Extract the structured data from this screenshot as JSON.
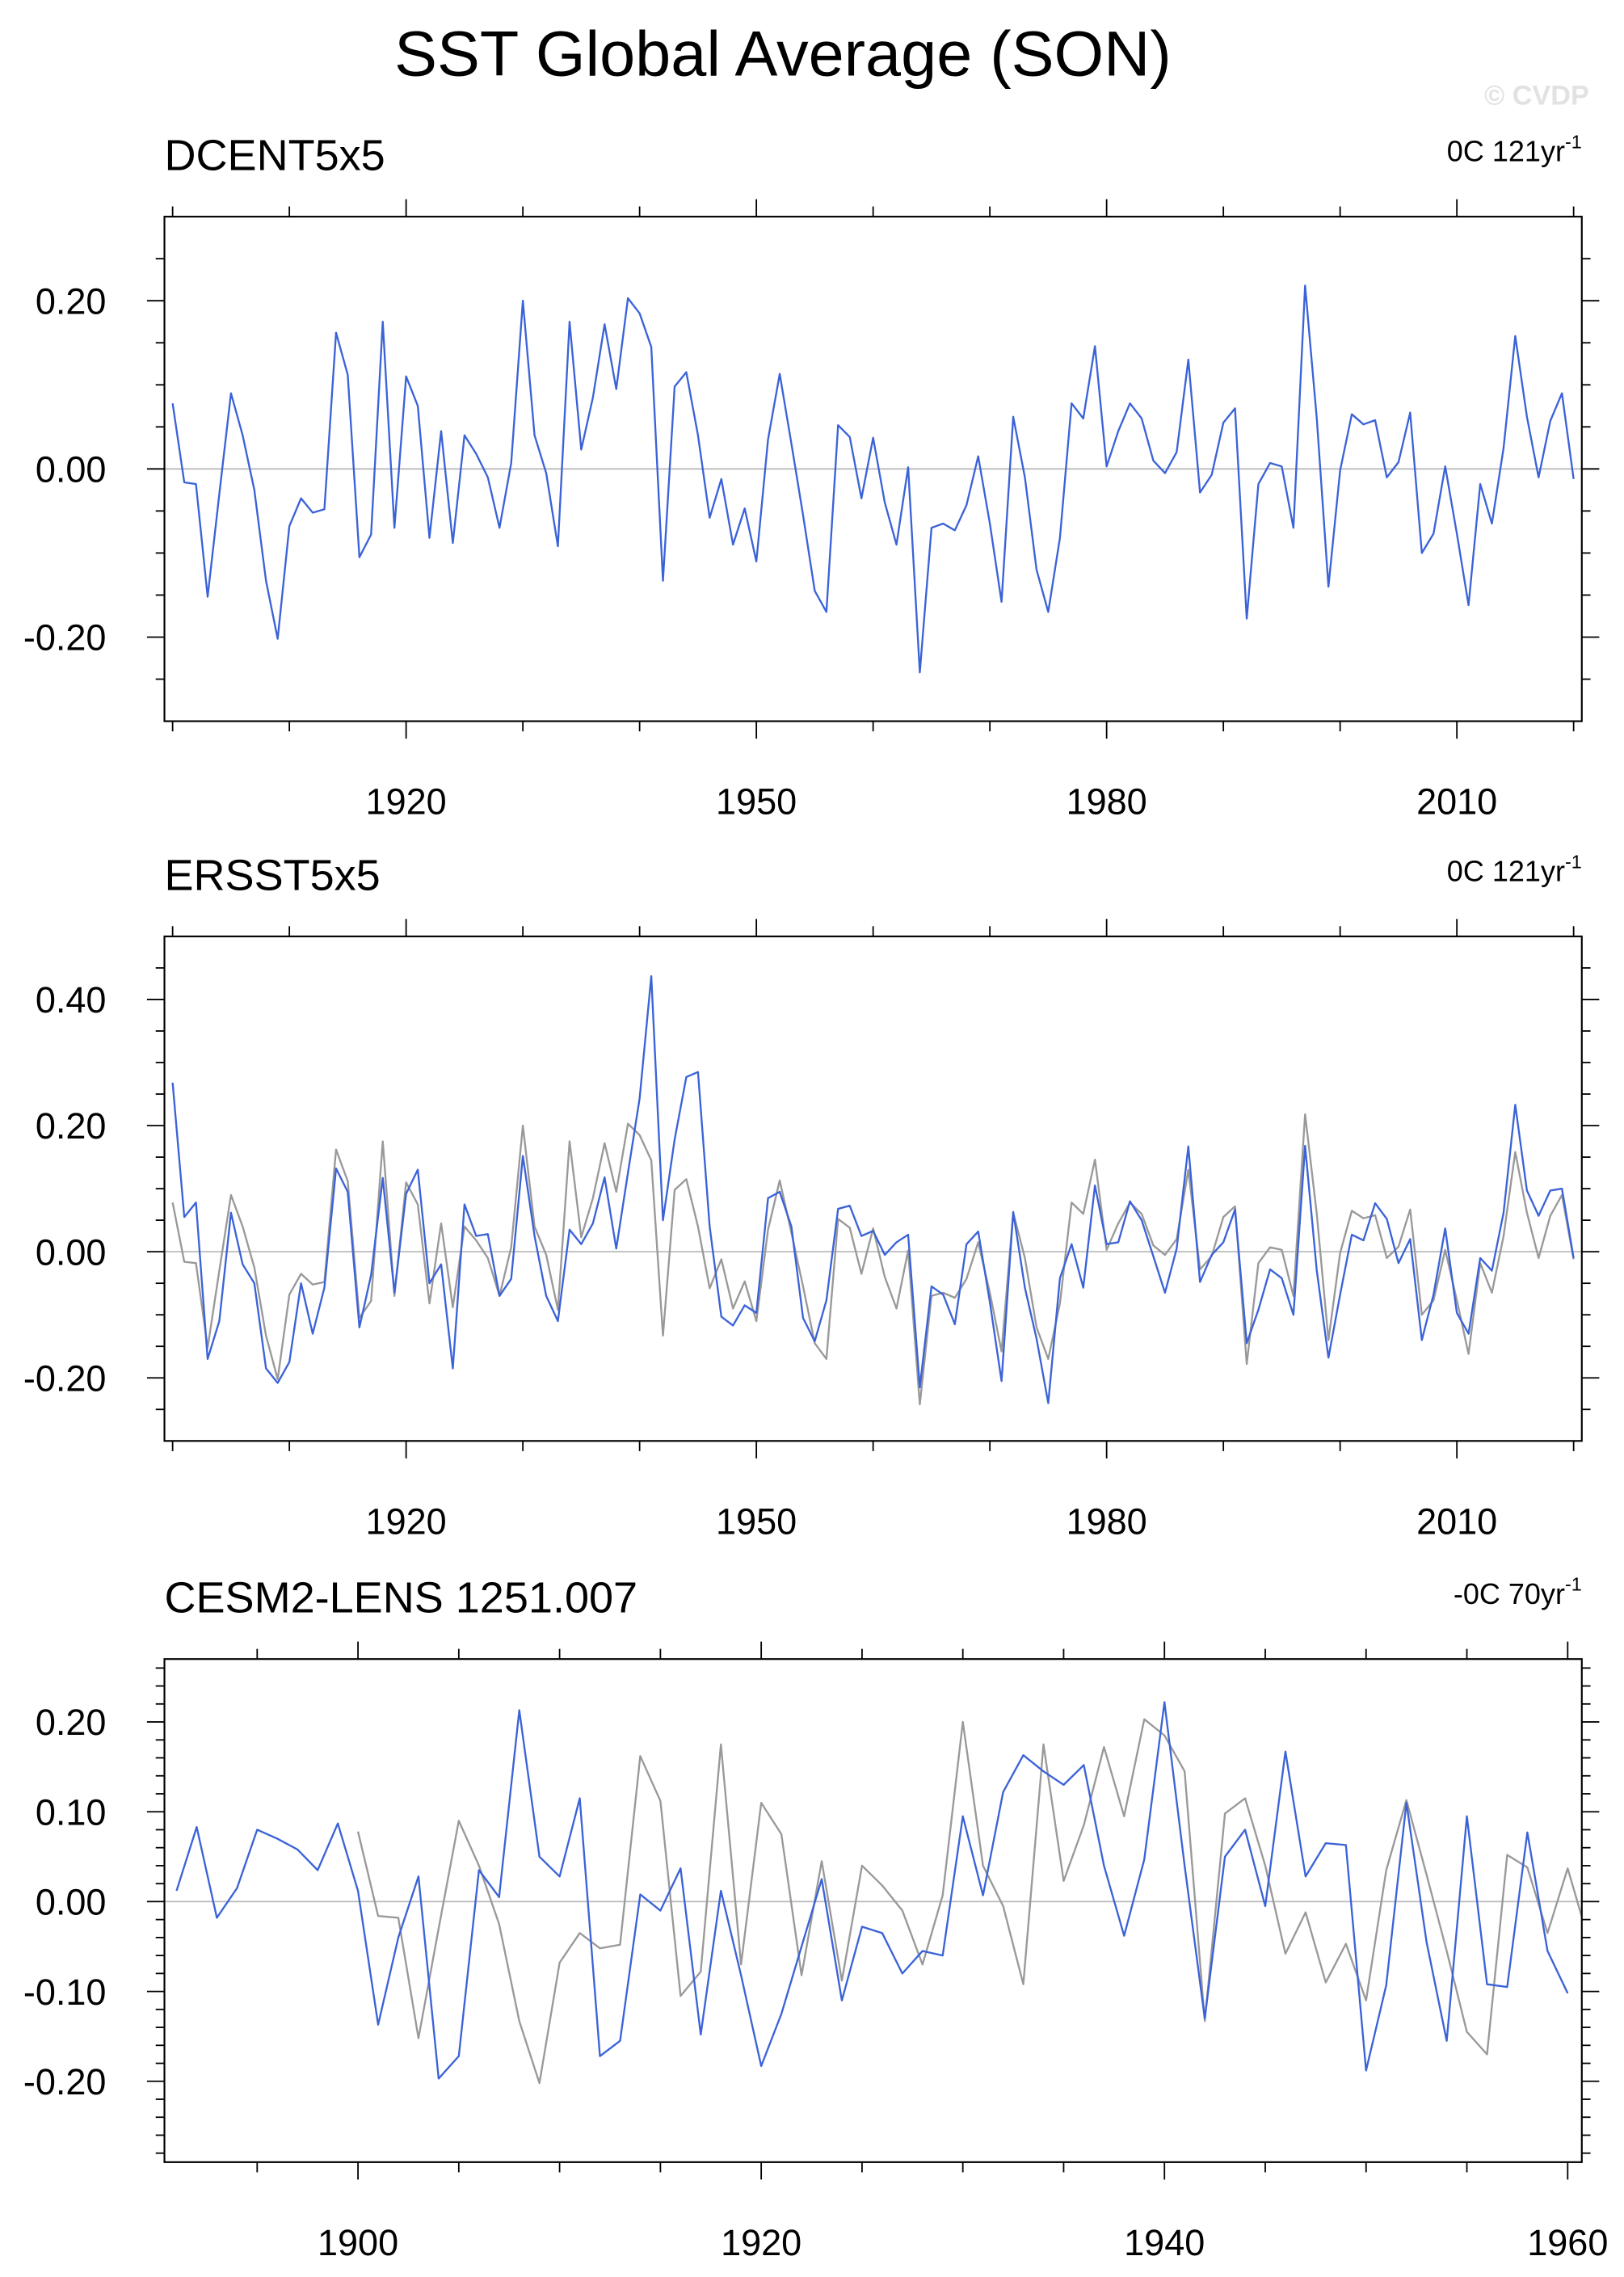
{
  "title": "SST Global Average (SON)",
  "watermark": "© CVDP",
  "chart_data": [
    {
      "type": "line",
      "title": "DCENT5x5",
      "trend": {
        "text": "0C 121yr",
        "superscript": "-1"
      },
      "x": [
        1900,
        1901,
        1902,
        1903,
        1904,
        1905,
        1906,
        1907,
        1908,
        1909,
        1910,
        1911,
        1912,
        1913,
        1914,
        1915,
        1916,
        1917,
        1918,
        1919,
        1920,
        1921,
        1922,
        1923,
        1924,
        1925,
        1926,
        1927,
        1928,
        1929,
        1930,
        1931,
        1932,
        1933,
        1934,
        1935,
        1936,
        1937,
        1938,
        1939,
        1940,
        1941,
        1942,
        1943,
        1944,
        1945,
        1946,
        1947,
        1948,
        1949,
        1950,
        1951,
        1952,
        1953,
        1954,
        1955,
        1956,
        1957,
        1958,
        1959,
        1960,
        1961,
        1962,
        1963,
        1964,
        1965,
        1966,
        1967,
        1968,
        1969,
        1970,
        1971,
        1972,
        1973,
        1974,
        1975,
        1976,
        1977,
        1978,
        1979,
        1980,
        1981,
        1982,
        1983,
        1984,
        1985,
        1986,
        1987,
        1988,
        1989,
        1990,
        1991,
        1992,
        1993,
        1994,
        1995,
        1996,
        1997,
        1998,
        1999,
        2000,
        2001,
        2002,
        2003,
        2004,
        2005,
        2006,
        2007,
        2008,
        2009,
        2010,
        2011,
        2012,
        2013,
        2014,
        2015,
        2016,
        2017,
        2018,
        2019,
        2020
      ],
      "series": [
        {
          "color": "#3b63d8",
          "values": [
            0.078,
            -0.016,
            -0.018,
            -0.152,
            -0.03,
            0.09,
            0.04,
            -0.025,
            -0.133,
            -0.202,
            -0.068,
            -0.035,
            -0.052,
            -0.048,
            0.162,
            0.112,
            -0.105,
            -0.078,
            0.175,
            -0.07,
            0.11,
            0.075,
            -0.082,
            0.045,
            -0.088,
            0.04,
            0.018,
            -0.01,
            -0.07,
            0.007,
            0.2,
            0.04,
            -0.005,
            -0.092,
            0.175,
            0.023,
            0.085,
            0.172,
            0.095,
            0.203,
            0.185,
            0.145,
            -0.133,
            0.098,
            0.115,
            0.04,
            -0.058,
            -0.012,
            -0.09,
            -0.047,
            -0.11,
            0.035,
            0.113,
            0.03,
            -0.055,
            -0.145,
            -0.17,
            0.052,
            0.038,
            -0.035,
            0.037,
            -0.04,
            -0.09,
            0.002,
            -0.242,
            -0.07,
            -0.065,
            -0.073,
            -0.043,
            0.015,
            -0.065,
            -0.158,
            0.062,
            -0.01,
            -0.12,
            -0.17,
            -0.082,
            0.078,
            0.06,
            0.146,
            0.003,
            0.045,
            0.078,
            0.06,
            0.01,
            -0.005,
            0.02,
            0.13,
            -0.028,
            -0.007,
            0.055,
            0.072,
            -0.178,
            -0.018,
            0.007,
            0.003,
            -0.07,
            0.218,
            0.06,
            -0.14,
            -0.002,
            0.065,
            0.053,
            0.058,
            -0.01,
            0.008,
            0.067,
            -0.1,
            -0.077,
            0.003,
            -0.077,
            -0.162,
            -0.018,
            -0.065,
            0.025,
            0.158,
            0.062,
            -0.01,
            0.057,
            0.09,
            -0.012
          ]
        }
      ],
      "xlim": [
        1899.3,
        2020.7
      ],
      "xticks": [
        1920,
        1950,
        1980,
        2010
      ],
      "xminorticks": [
        1900,
        1910,
        1930,
        1940,
        1960,
        1970,
        1990,
        2000,
        2020
      ],
      "ylim": [
        -0.3,
        0.3
      ],
      "yticks": [
        {
          "value": -0.2,
          "label": "-0.20"
        },
        {
          "value": 0,
          "label": "0.00"
        },
        {
          "value": 0.2,
          "label": "0.20"
        }
      ],
      "yminorticks": [
        -0.25,
        -0.15,
        -0.1,
        -0.05,
        0.05,
        0.1,
        0.15,
        0.25
      ],
      "zero_line": true
    },
    {
      "type": "line",
      "title": "ERSST5x5",
      "trend": {
        "text": "0C 121yr",
        "superscript": "-1"
      },
      "x": [
        1900,
        1901,
        1902,
        1903,
        1904,
        1905,
        1906,
        1907,
        1908,
        1909,
        1910,
        1911,
        1912,
        1913,
        1914,
        1915,
        1916,
        1917,
        1918,
        1919,
        1920,
        1921,
        1922,
        1923,
        1924,
        1925,
        1926,
        1927,
        1928,
        1929,
        1930,
        1931,
        1932,
        1933,
        1934,
        1935,
        1936,
        1937,
        1938,
        1939,
        1940,
        1941,
        1942,
        1943,
        1944,
        1945,
        1946,
        1947,
        1948,
        1949,
        1950,
        1951,
        1952,
        1953,
        1954,
        1955,
        1956,
        1957,
        1958,
        1959,
        1960,
        1961,
        1962,
        1963,
        1964,
        1965,
        1966,
        1967,
        1968,
        1969,
        1970,
        1971,
        1972,
        1973,
        1974,
        1975,
        1976,
        1977,
        1978,
        1979,
        1980,
        1981,
        1982,
        1983,
        1984,
        1985,
        1986,
        1987,
        1988,
        1989,
        1990,
        1991,
        1992,
        1993,
        1994,
        1995,
        1996,
        1997,
        1998,
        1999,
        2000,
        2001,
        2002,
        2003,
        2004,
        2005,
        2006,
        2007,
        2008,
        2009,
        2010,
        2011,
        2012,
        2013,
        2014,
        2015,
        2016,
        2017,
        2018,
        2019,
        2020
      ],
      "series": [
        {
          "color": "#999999",
          "values": [
            0.078,
            -0.016,
            -0.018,
            -0.152,
            -0.03,
            0.09,
            0.04,
            -0.025,
            -0.133,
            -0.202,
            -0.068,
            -0.035,
            -0.052,
            -0.048,
            0.162,
            0.112,
            -0.105,
            -0.078,
            0.175,
            -0.07,
            0.11,
            0.075,
            -0.082,
            0.045,
            -0.088,
            0.04,
            0.018,
            -0.01,
            -0.07,
            0.007,
            0.2,
            0.04,
            -0.005,
            -0.092,
            0.175,
            0.023,
            0.085,
            0.172,
            0.095,
            0.203,
            0.185,
            0.145,
            -0.133,
            0.098,
            0.115,
            0.04,
            -0.058,
            -0.012,
            -0.09,
            -0.047,
            -0.11,
            0.035,
            0.113,
            0.03,
            -0.055,
            -0.145,
            -0.17,
            0.052,
            0.038,
            -0.035,
            0.037,
            -0.04,
            -0.09,
            0.002,
            -0.242,
            -0.07,
            -0.065,
            -0.073,
            -0.043,
            0.015,
            -0.065,
            -0.158,
            0.062,
            -0.01,
            -0.12,
            -0.17,
            -0.082,
            0.078,
            0.06,
            0.146,
            0.003,
            0.045,
            0.078,
            0.06,
            0.01,
            -0.005,
            0.02,
            0.13,
            -0.028,
            -0.007,
            0.055,
            0.072,
            -0.178,
            -0.018,
            0.007,
            0.003,
            -0.07,
            0.218,
            0.06,
            -0.14,
            -0.002,
            0.065,
            0.053,
            0.058,
            -0.01,
            0.008,
            0.067,
            -0.1,
            -0.077,
            0.003,
            -0.077,
            -0.162,
            -0.018,
            -0.065,
            0.025,
            0.158,
            0.062,
            -0.01,
            0.057,
            0.09,
            -0.012
          ]
        },
        {
          "color": "#3b63d8",
          "values": [
            0.268,
            0.055,
            0.078,
            -0.17,
            -0.11,
            0.062,
            -0.02,
            -0.05,
            -0.185,
            -0.208,
            -0.175,
            -0.05,
            -0.13,
            -0.057,
            0.132,
            0.095,
            -0.12,
            -0.037,
            0.117,
            -0.065,
            0.092,
            0.13,
            -0.05,
            -0.02,
            -0.185,
            0.075,
            0.025,
            0.028,
            -0.07,
            -0.043,
            0.152,
            0.025,
            -0.07,
            -0.11,
            0.035,
            0.012,
            0.045,
            0.118,
            0.005,
            0.125,
            0.243,
            0.437,
            0.05,
            0.178,
            0.277,
            0.285,
            0.04,
            -0.103,
            -0.117,
            -0.085,
            -0.097,
            0.085,
            0.095,
            0.04,
            -0.105,
            -0.142,
            -0.077,
            0.068,
            0.073,
            0.025,
            0.033,
            -0.005,
            0.015,
            0.027,
            -0.215,
            -0.055,
            -0.068,
            -0.115,
            0.012,
            0.032,
            -0.08,
            -0.205,
            0.063,
            -0.057,
            -0.138,
            -0.24,
            -0.042,
            0.012,
            -0.057,
            0.105,
            0.012,
            0.015,
            0.08,
            0.05,
            -0.007,
            -0.065,
            0.005,
            0.167,
            -0.048,
            -0.005,
            0.015,
            0.067,
            -0.145,
            -0.092,
            -0.028,
            -0.042,
            -0.1,
            0.168,
            -0.03,
            -0.168,
            -0.068,
            0.027,
            0.018,
            0.077,
            0.052,
            -0.018,
            0.02,
            -0.14,
            -0.068,
            0.037,
            -0.097,
            -0.13,
            -0.01,
            -0.03,
            0.062,
            0.233,
            0.097,
            0.057,
            0.097,
            0.1,
            -0.01
          ]
        }
      ],
      "xlim": [
        1899.3,
        2020.7
      ],
      "xticks": [
        1920,
        1950,
        1980,
        2010
      ],
      "xminorticks": [
        1900,
        1910,
        1930,
        1940,
        1960,
        1970,
        1990,
        2000,
        2020
      ],
      "ylim": [
        -0.3,
        0.5
      ],
      "yticks": [
        {
          "value": -0.2,
          "label": "-0.20"
        },
        {
          "value": 0,
          "label": "0.00"
        },
        {
          "value": 0.2,
          "label": "0.20"
        },
        {
          "value": 0.4,
          "label": "0.40"
        }
      ],
      "yminorticks": [
        -0.25,
        -0.15,
        -0.1,
        -0.05,
        0.05,
        0.1,
        0.15,
        0.25,
        0.3,
        0.35,
        0.45
      ],
      "zero_line": true
    },
    {
      "type": "line",
      "title": "CESM2-LENS 1251.007",
      "trend": {
        "text": "-0C 70yr",
        "superscript": "-1"
      },
      "x": [
        1891,
        1892,
        1893,
        1894,
        1895,
        1896,
        1897,
        1898,
        1899,
        1900,
        1901,
        1902,
        1903,
        1904,
        1905,
        1906,
        1907,
        1908,
        1909,
        1910,
        1911,
        1912,
        1913,
        1914,
        1915,
        1916,
        1917,
        1918,
        1919,
        1920,
        1921,
        1922,
        1923,
        1924,
        1925,
        1926,
        1927,
        1928,
        1929,
        1930,
        1931,
        1932,
        1933,
        1934,
        1935,
        1936,
        1937,
        1938,
        1939,
        1940,
        1941,
        1942,
        1943,
        1944,
        1945,
        1946,
        1947,
        1948,
        1949,
        1950,
        1951,
        1952,
        1953,
        1954,
        1955,
        1956,
        1957,
        1958,
        1959,
        1960,
        1961
      ],
      "series": [
        {
          "color": "#999999",
          "values": [
            null,
            null,
            null,
            null,
            null,
            null,
            null,
            null,
            null,
            0.078,
            -0.016,
            -0.018,
            -0.152,
            -0.03,
            0.09,
            0.04,
            -0.025,
            -0.133,
            -0.202,
            -0.068,
            -0.035,
            -0.052,
            -0.048,
            0.162,
            0.112,
            -0.105,
            -0.078,
            0.175,
            -0.07,
            0.11,
            0.075,
            -0.082,
            0.045,
            -0.088,
            0.04,
            0.018,
            -0.01,
            -0.07,
            0.007,
            0.2,
            0.04,
            -0.005,
            -0.092,
            0.175,
            0.023,
            0.085,
            0.172,
            0.095,
            0.203,
            0.185,
            0.145,
            -0.133,
            0.098,
            0.115,
            0.04,
            -0.058,
            -0.012,
            -0.09,
            -0.047,
            -0.11,
            0.035,
            0.113,
            0.03,
            -0.055,
            -0.145,
            -0.17,
            0.052,
            0.038,
            -0.035,
            0.037,
            -0.04
          ]
        },
        {
          "color": "#3b63d8",
          "values": [
            0.012,
            0.083,
            -0.018,
            0.015,
            0.08,
            0.07,
            0.058,
            0.035,
            0.087,
            0.012,
            -0.137,
            -0.04,
            0.028,
            -0.197,
            -0.172,
            0.035,
            0.005,
            0.213,
            0.05,
            0.028,
            0.115,
            -0.172,
            -0.155,
            0.008,
            -0.01,
            0.037,
            -0.148,
            0.012,
            -0.082,
            -0.183,
            -0.125,
            -0.05,
            0.025,
            -0.11,
            -0.028,
            -0.035,
            -0.08,
            -0.055,
            -0.06,
            0.095,
            0.007,
            0.122,
            0.163,
            0.145,
            0.13,
            0.152,
            0.04,
            -0.038,
            0.047,
            0.222,
            0.04,
            -0.13,
            0.05,
            0.08,
            -0.005,
            0.167,
            0.028,
            0.065,
            0.063,
            -0.188,
            -0.093,
            0.11,
            -0.045,
            -0.155,
            0.095,
            -0.092,
            -0.095,
            0.077,
            -0.055,
            -0.102,
            null
          ]
        }
      ],
      "xlim": [
        1890.4,
        1960.7
      ],
      "xticks": [
        1900,
        1920,
        1940,
        1960
      ],
      "xminorticks": [
        1895,
        1905,
        1910,
        1915,
        1925,
        1930,
        1935,
        1945,
        1950,
        1955
      ],
      "ylim": [
        -0.29,
        0.27
      ],
      "yticks": [
        {
          "value": -0.2,
          "label": "-0.20"
        },
        {
          "value": -0.1,
          "label": "-0.10"
        },
        {
          "value": 0,
          "label": "0.00"
        },
        {
          "value": 0.1,
          "label": "0.10"
        },
        {
          "value": 0.2,
          "label": "0.20"
        }
      ],
      "yminorticks": [
        -0.28,
        -0.26,
        -0.24,
        -0.22,
        -0.18,
        -0.16,
        -0.14,
        -0.12,
        -0.08,
        -0.06,
        -0.04,
        -0.02,
        0.02,
        0.04,
        0.06,
        0.08,
        0.12,
        0.14,
        0.16,
        0.18,
        0.22,
        0.24,
        0.26
      ],
      "zero_line": true
    }
  ]
}
